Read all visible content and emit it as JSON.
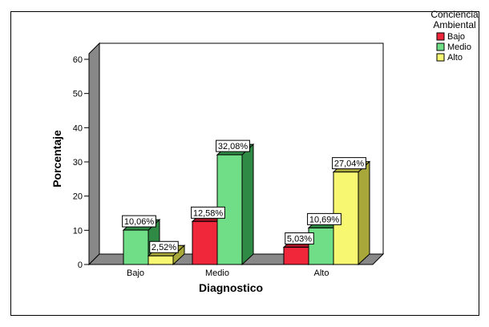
{
  "chart_data": {
    "type": "bar",
    "categories": [
      "Bajo",
      "Medio",
      "Alto"
    ],
    "series": [
      {
        "name": "Bajo",
        "color": "#f0263a",
        "side_color": "#a01525",
        "values": [
          null,
          12.58,
          5.03
        ],
        "labels": [
          "",
          "12,58%",
          "5,03%"
        ]
      },
      {
        "name": "Medio",
        "color": "#6fde86",
        "side_color": "#2f8a45",
        "values": [
          10.06,
          32.08,
          10.69
        ],
        "labels": [
          "10,06%",
          "32,08%",
          "10,69%"
        ]
      },
      {
        "name": "Alto",
        "color": "#f7f772",
        "side_color": "#a8a83a",
        "values": [
          2.52,
          null,
          27.04
        ],
        "labels": [
          "2,52%",
          "",
          "27,04%"
        ]
      }
    ],
    "xlabel": "Diagnostico",
    "ylabel": "Porcentaje",
    "ylim": [
      0,
      60
    ],
    "yticks": [
      0,
      10,
      20,
      30,
      40,
      50,
      60
    ],
    "legend_title": [
      "Conciencia",
      "Ambiental"
    ],
    "legend_position": "right",
    "grid": false,
    "three_d": true
  }
}
